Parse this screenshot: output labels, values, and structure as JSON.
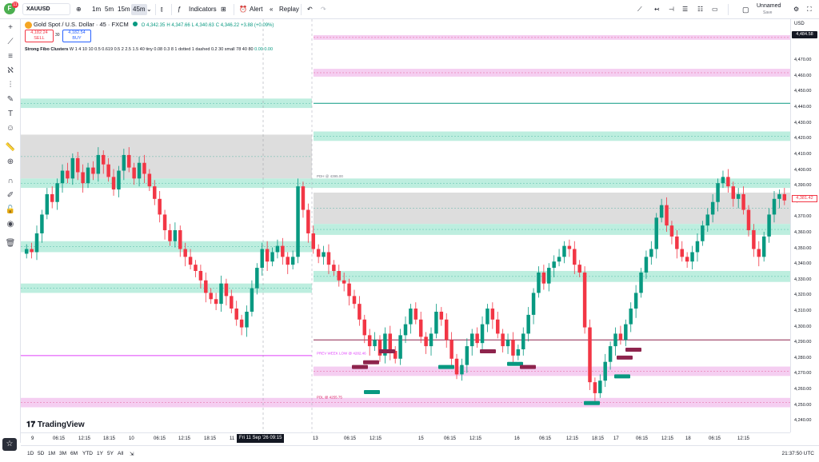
{
  "topbar": {
    "logo_letter": "F",
    "notif_count": "11",
    "symbol": "XAUUSD",
    "intervals": [
      "1m",
      "5m",
      "15m",
      "45m"
    ],
    "active_interval": "45m",
    "indicators_label": "Indicators",
    "alert_label": "Alert",
    "replay_label": "Replay",
    "layout_name": "Unnamed",
    "layout_sub": "Save"
  },
  "legend": {
    "title": "Gold Spot / U.S. Dollar · 45 · FXCM",
    "open": "O 4,342.35",
    "high": "H 4,347.66",
    "low": "L 4,340.63",
    "close": "C 4,346.22",
    "change": "+3.88 (+0.09%)",
    "sell_price": "4,182.24",
    "sell_label": "SELL",
    "spread": "30",
    "buy_price": "4,182.54",
    "buy_label": "BUY",
    "indicator_name": "Strong Fibo Clusters",
    "indicator_params": "W 1 4 10 10 0.5 0.619 0.5 2 2.5 1.5 40 tiny 0.08 0.3 8 1 dotted 1 dashed 0.2 30 small 78 40 80",
    "indicator_values": "0.00  0.00"
  },
  "annotations": {
    "prev_week_low": "PREV WEEK LOW @ 4282.46",
    "small_label": "PDL @ 4255.75",
    "mid_label": "PDH @ 4395.00"
  },
  "price_axis": {
    "currency": "USD",
    "ticks": [
      "4,480.00",
      "4,470.00",
      "4,460.00",
      "4,450.00",
      "4,440.00",
      "4,430.00",
      "4,420.00",
      "4,410.00",
      "4,400.00",
      "4,390.00",
      "4,380.00",
      "4,370.00",
      "4,360.00",
      "4,350.00",
      "4,340.00",
      "4,330.00",
      "4,320.00",
      "4,310.00",
      "4,300.00",
      "4,290.00",
      "4,280.00",
      "4,270.00",
      "4,260.00",
      "4,250.00",
      "4,240.00"
    ],
    "current_label": "4,484.58",
    "last_label": "4,381.42"
  },
  "time_axis": {
    "ticks": [
      "9",
      "06:15",
      "12:15",
      "18:15",
      "10",
      "06:15",
      "12:15",
      "18:15",
      "11",
      "13",
      "06:15",
      "12:15",
      "15",
      "06:15",
      "12:15",
      "16",
      "06:15",
      "12:15",
      "18:15",
      "17",
      "06:15",
      "12:15",
      "18",
      "06:15",
      "12:15"
    ],
    "cursor_label": "Fri 11 Sep '26   09:15"
  },
  "bottombar": {
    "ranges": [
      "1D",
      "5D",
      "1M",
      "3M",
      "6M",
      "YTD",
      "1Y",
      "5Y",
      "All"
    ],
    "clock": "21:37:50 UTC"
  },
  "brand": "TradingView",
  "colors": {
    "up": "#089981",
    "down": "#f23645",
    "zone_green": "#b2ebd9",
    "zone_pink": "#f3c6ee",
    "zone_grey": "#d9d9d9",
    "line_pink": "#e040fb",
    "line_maroon": "#8e244d",
    "line_green": "#089981"
  },
  "chart_data": {
    "type": "candlestick",
    "y_range": [
      4235,
      4488
    ],
    "zones": [
      {
        "kind": "pink",
        "from": 4483.5,
        "to": 4486.5,
        "side": "right"
      },
      {
        "kind": "pink",
        "from": 4460,
        "to": 4465,
        "side": "right"
      },
      {
        "kind": "green",
        "from": 4440,
        "to": 4446,
        "side": "left"
      },
      {
        "kind": "green",
        "from": 4419,
        "to": 4425,
        "side": "right"
      },
      {
        "kind": "grey",
        "from": 4395,
        "to": 4423,
        "side": "left"
      },
      {
        "kind": "green",
        "from": 4389,
        "to": 4395,
        "side": "both"
      },
      {
        "kind": "grey",
        "from": 4366,
        "to": 4386,
        "side": "right"
      },
      {
        "kind": "green",
        "from": 4359,
        "to": 4366,
        "side": "right"
      },
      {
        "kind": "green",
        "from": 4348,
        "to": 4355,
        "side": "left"
      },
      {
        "kind": "green",
        "from": 4329,
        "to": 4336,
        "side": "right"
      },
      {
        "kind": "green",
        "from": 4322,
        "to": 4328,
        "side": "left"
      },
      {
        "kind": "pink",
        "from": 4269,
        "to": 4275,
        "side": "right"
      },
      {
        "kind": "pink",
        "from": 4249,
        "to": 4255,
        "side": "both"
      }
    ],
    "lines": [
      {
        "kind": "green",
        "price": 4443,
        "side": "right"
      },
      {
        "kind": "maroon",
        "price": 4292,
        "side": "right"
      },
      {
        "kind": "pink",
        "price": 4282,
        "side": "left"
      }
    ],
    "series_close": [
      4350,
      4348,
      4360,
      4372,
      4385,
      4380,
      4392,
      4400,
      4395,
      4408,
      4399,
      4392,
      4402,
      4398,
      4410,
      4404,
      4396,
      4388,
      4400,
      4410,
      4402,
      4395,
      4405,
      4398,
      4390,
      4382,
      4372,
      4362,
      4355,
      4362,
      4350,
      4345,
      4340,
      4336,
      4330,
      4322,
      4318,
      4315,
      4328,
      4320,
      4312,
      4305,
      4300,
      4310,
      4325,
      4338,
      4350,
      4342,
      4348,
      4352,
      4345,
      4340,
      4345,
      4390,
      4375,
      4360,
      4350,
      4345,
      4348,
      4340,
      4336,
      4330,
      4328,
      4320,
      4315,
      4305,
      4295,
      4288,
      4292,
      4282,
      4296,
      4285,
      4280,
      4295,
      4302,
      4312,
      4305,
      4294,
      4288,
      4296,
      4310,
      4305,
      4292,
      4280,
      4270,
      4276,
      4288,
      4296,
      4290,
      4302,
      4312,
      4305,
      4296,
      4288,
      4292,
      4282,
      4286,
      4296,
      4308,
      4322,
      4335,
      4328,
      4338,
      4342,
      4345,
      4352,
      4350,
      4340,
      4335,
      4300,
      4265,
      4258,
      4266,
      4278,
      4288,
      4296,
      4292,
      4302,
      4312,
      4322,
      4335,
      4345,
      4350,
      4370,
      4378,
      4365,
      4358,
      4350,
      4345,
      4342,
      4348,
      4355,
      4365,
      4372,
      4380,
      4392,
      4396,
      4390,
      4382,
      4385,
      4375,
      4362,
      4350,
      4345,
      4358,
      4372,
      4382,
      4385,
      4381
    ]
  }
}
